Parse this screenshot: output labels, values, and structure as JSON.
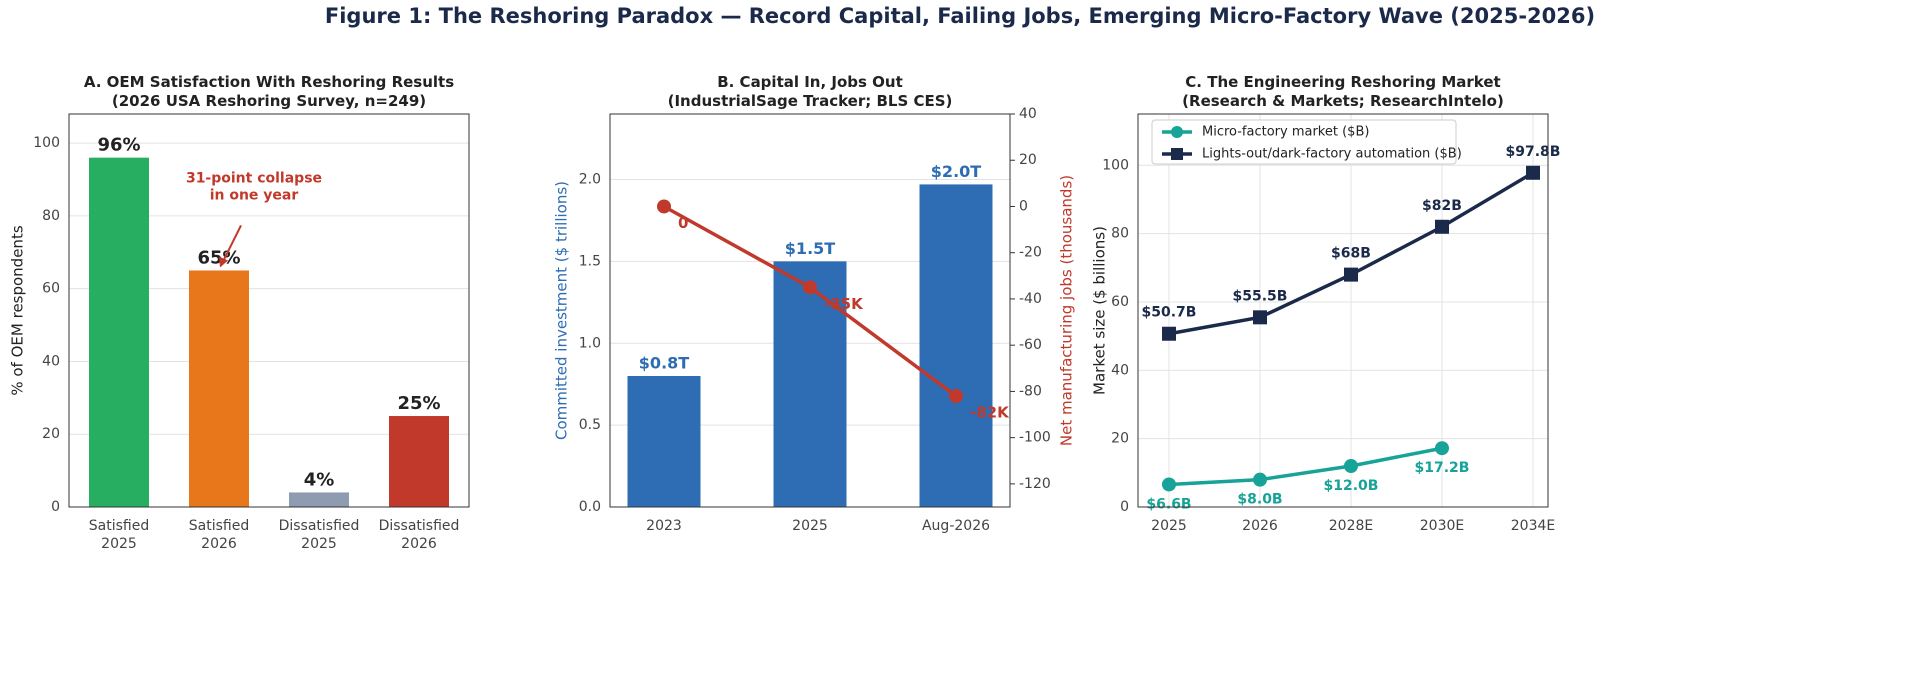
{
  "title": "Figure 1: The Reshoring Paradox — Record Capital, Failing Jobs, Emerging Micro-Factory Wave (2025-2026)",
  "chart_data": [
    {
      "type": "bar",
      "title": "A. OEM Satisfaction With Reshoring Results\n(2026 USA Reshoring Survey, n=249)",
      "ylabel": "% of OEM respondents",
      "categories": [
        "Satisfied\n2025",
        "Satisfied\n2026",
        "Dissatisfied\n2025",
        "Dissatisfied\n2026"
      ],
      "values": [
        96,
        65,
        4,
        25
      ],
      "value_labels": [
        "96%",
        "65%",
        "4%",
        "25%"
      ],
      "colors": [
        "#27ae60",
        "#e8761a",
        "#8e9bb0",
        "#c0392b"
      ],
      "ylim": [
        0,
        108
      ],
      "yticks": [
        0,
        20,
        40,
        60,
        80,
        100
      ],
      "grid": "y",
      "annotation": {
        "text": "31-point collapse\nin one year",
        "color": "#c0392b",
        "target": 1
      }
    },
    {
      "type": "bar_line",
      "title": "B. Capital In, Jobs Out\n(IndustrialSage Tracker; BLS CES)",
      "ylabel": "Committed investment ($ trillions)",
      "y2label": "Net manufacturing jobs (thousands)",
      "categories": [
        "2023",
        "2025",
        "Aug-2026"
      ],
      "series": [
        {
          "name": "Committed investment",
          "color": "#2e6db4",
          "values": [
            0.8,
            1.5,
            1.97
          ],
          "value_labels": [
            "$0.8T",
            "$1.5T",
            "$2.0T"
          ]
        },
        {
          "name": "Net manufacturing jobs",
          "color": "#c0392b",
          "axis": "y2",
          "values": [
            0,
            -35,
            -82
          ],
          "value_labels": [
            "0",
            "-35K",
            "-82K"
          ]
        }
      ],
      "ylim": [
        0,
        2.4
      ],
      "yticks": [
        {
          "value": 0,
          "label": "0.0"
        },
        0.5,
        {
          "value": 1,
          "label": "1.0"
        },
        1.5,
        {
          "value": 2,
          "label": "2.0"
        }
      ],
      "y2lim": [
        -130,
        40
      ],
      "y2ticks": [
        -120,
        -100,
        -80,
        -60,
        -40,
        -20,
        0,
        20,
        40
      ],
      "grid": "y"
    },
    {
      "type": "line",
      "title": "C. The Engineering Reshoring Market\n(Research & Markets; ResearchIntelo)",
      "ylabel": "Market size ($ billions)",
      "categories": [
        "2025",
        "2026",
        "2028E",
        "2030E",
        "2034E"
      ],
      "series": [
        {
          "name": "Micro-factory market ($B)",
          "color": "#17a398",
          "marker": "circle",
          "values": [
            6.6,
            8.0,
            12.0,
            17.2,
            null
          ],
          "value_labels": [
            "$6.6B",
            "$8.0B",
            "$12.0B",
            "$17.2B",
            null
          ]
        },
        {
          "name": "Lights-out/dark-factory automation ($B)",
          "color": "#1b2a4a",
          "marker": "square",
          "values": [
            50.7,
            55.5,
            68,
            82,
            97.8
          ],
          "value_labels": [
            "$50.7B",
            "$55.5B",
            "$68B",
            "$82B",
            "$97.8B"
          ]
        }
      ],
      "ylim": [
        0,
        115
      ],
      "yticks": [
        0,
        20,
        40,
        60,
        80,
        100
      ],
      "grid": "both",
      "legend": "upper left"
    }
  ]
}
